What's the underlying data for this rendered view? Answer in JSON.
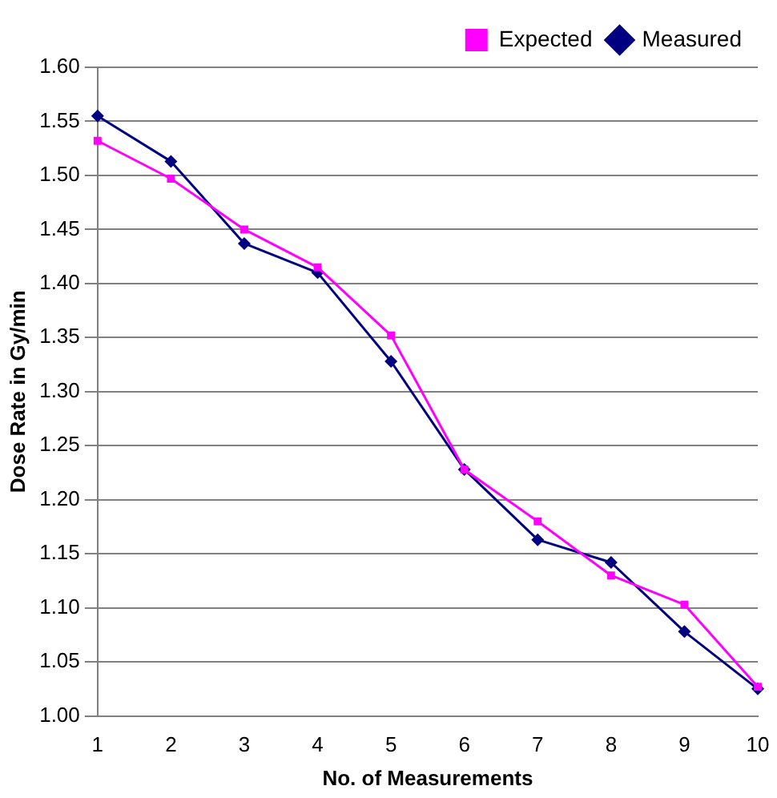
{
  "chart_data": {
    "type": "line",
    "xlabel": "No. of Measurements",
    "ylabel": "Dose Rate in Gy/min",
    "categories": [
      "1",
      "2",
      "3",
      "4",
      "5",
      "6",
      "7",
      "8",
      "9",
      "10"
    ],
    "series": [
      {
        "name": "Measured",
        "color": "#000080",
        "marker": "diamond",
        "values": [
          1.555,
          1.513,
          1.437,
          1.41,
          1.328,
          1.228,
          1.163,
          1.142,
          1.078,
          1.025
        ]
      },
      {
        "name": "Expected",
        "color": "#ff00ff",
        "marker": "square",
        "values": [
          1.532,
          1.497,
          1.45,
          1.415,
          1.352,
          1.228,
          1.18,
          1.13,
          1.103,
          1.027
        ]
      }
    ],
    "ylim": [
      1.0,
      1.6
    ],
    "yticks": [
      {
        "value": 1.0,
        "label": "1.00"
      },
      {
        "value": 1.05,
        "label": "1.05"
      },
      {
        "value": 1.1,
        "label": "1.10"
      },
      {
        "value": 1.15,
        "label": "1.15"
      },
      {
        "value": 1.2,
        "label": "1.20"
      },
      {
        "value": 1.25,
        "label": "1.25"
      },
      {
        "value": 1.3,
        "label": "1.30"
      },
      {
        "value": 1.35,
        "label": "1.35"
      },
      {
        "value": 1.4,
        "label": "1.40"
      },
      {
        "value": 1.45,
        "label": "1.45"
      },
      {
        "value": 1.5,
        "label": "1.50"
      },
      {
        "value": 1.55,
        "label": "1.55"
      },
      {
        "value": 1.6,
        "label": "1.60"
      }
    ],
    "grid": "y",
    "legend": "top right",
    "line_style": "solid"
  }
}
